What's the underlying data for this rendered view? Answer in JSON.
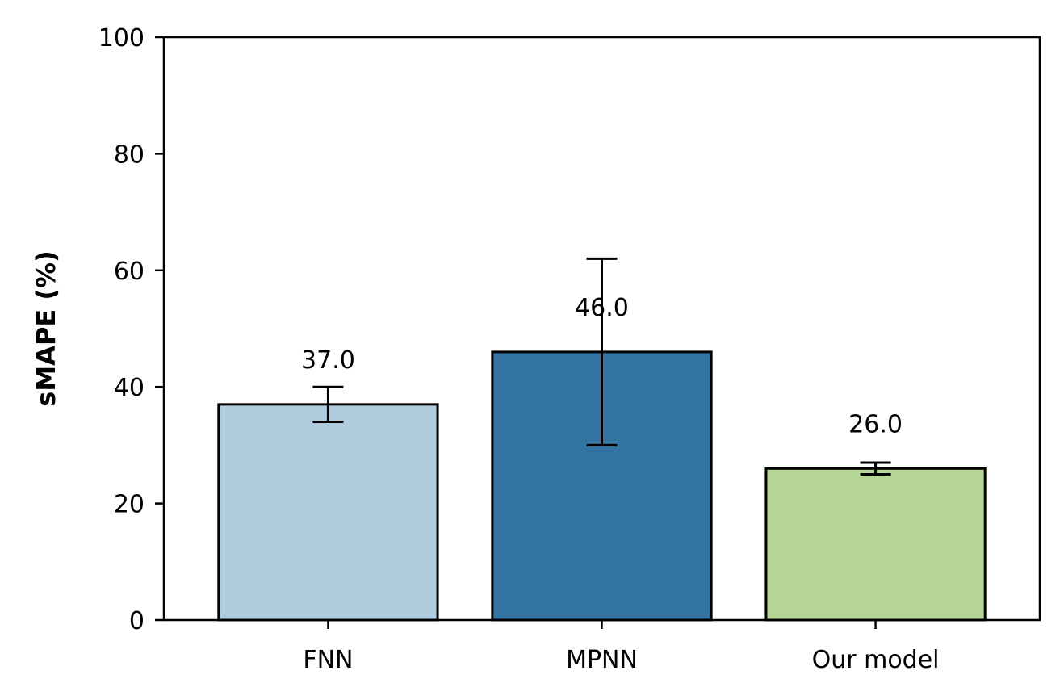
{
  "chart_data": {
    "type": "bar",
    "title": "",
    "xlabel": "",
    "ylabel": "sMAPE (%)",
    "ylim": [
      0,
      100
    ],
    "yticks": [
      0,
      20,
      40,
      60,
      80,
      100
    ],
    "categories": [
      "FNN",
      "MPNN",
      "Our model"
    ],
    "values": [
      37.0,
      46.0,
      26.0
    ],
    "error_low": [
      34,
      30,
      25
    ],
    "error_high": [
      40,
      62,
      27
    ],
    "data_labels": [
      "37.0",
      "46.0",
      "26.0"
    ],
    "colors": [
      "#afcbdd",
      "#3374a2",
      "#b4d595"
    ],
    "grid": false,
    "legend": "none"
  }
}
